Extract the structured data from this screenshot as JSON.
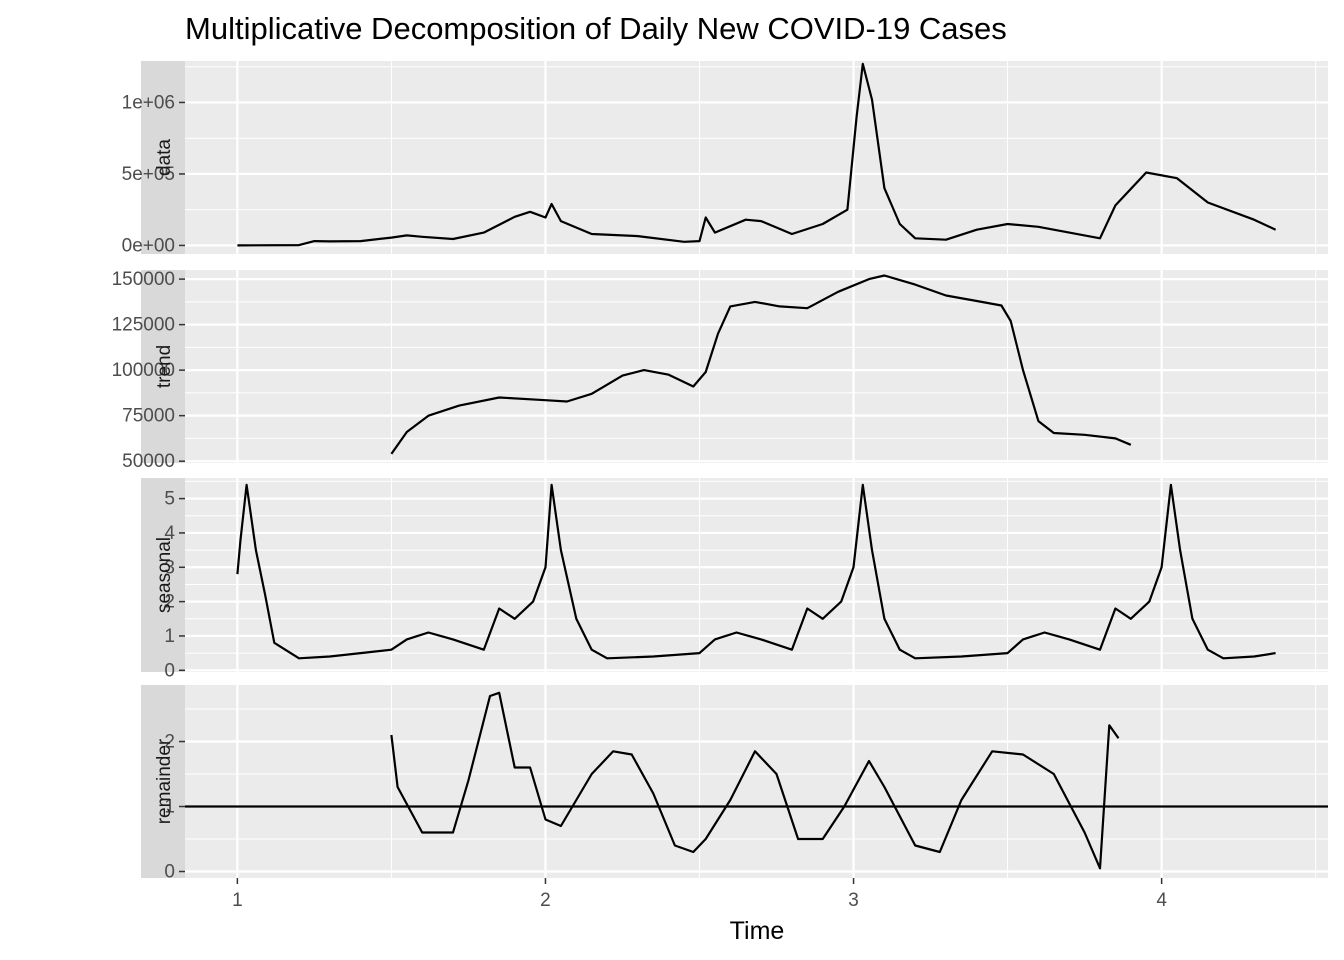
{
  "chart_data": {
    "type": "line",
    "title": "Multiplicative Decomposition of Daily New COVID-19 Cases",
    "xlabel": "Time",
    "xlim": [
      0.83,
      4.54
    ],
    "x_ticks": [
      1,
      2,
      3,
      4
    ],
    "x_tick_labels": [
      "1",
      "2",
      "3",
      "4"
    ],
    "grid": true,
    "panels": [
      {
        "name": "data",
        "ylim": [
          -60000,
          1290000
        ],
        "y_ticks": [
          0,
          500000,
          1000000
        ],
        "y_tick_labels": [
          "0e+00",
          "5e+05",
          "1e+06"
        ],
        "series": [
          [
            1.0,
            0
          ],
          [
            1.2,
            2000
          ],
          [
            1.25,
            30000
          ],
          [
            1.3,
            28000
          ],
          [
            1.4,
            30000
          ],
          [
            1.5,
            55000
          ],
          [
            1.55,
            70000
          ],
          [
            1.6,
            60000
          ],
          [
            1.7,
            45000
          ],
          [
            1.8,
            90000
          ],
          [
            1.9,
            200000
          ],
          [
            1.95,
            235000
          ],
          [
            2.0,
            195000
          ],
          [
            2.02,
            290000
          ],
          [
            2.05,
            170000
          ],
          [
            2.15,
            80000
          ],
          [
            2.3,
            65000
          ],
          [
            2.45,
            25000
          ],
          [
            2.5,
            30000
          ],
          [
            2.52,
            195000
          ],
          [
            2.55,
            90000
          ],
          [
            2.65,
            180000
          ],
          [
            2.7,
            170000
          ],
          [
            2.8,
            80000
          ],
          [
            2.9,
            150000
          ],
          [
            2.98,
            250000
          ],
          [
            3.01,
            900000
          ],
          [
            3.03,
            1270000
          ],
          [
            3.06,
            1020000
          ],
          [
            3.1,
            400000
          ],
          [
            3.15,
            150000
          ],
          [
            3.2,
            50000
          ],
          [
            3.3,
            40000
          ],
          [
            3.4,
            110000
          ],
          [
            3.5,
            150000
          ],
          [
            3.6,
            130000
          ],
          [
            3.7,
            90000
          ],
          [
            3.8,
            50000
          ],
          [
            3.85,
            280000
          ],
          [
            3.95,
            510000
          ],
          [
            4.05,
            470000
          ],
          [
            4.15,
            300000
          ],
          [
            4.3,
            180000
          ],
          [
            4.37,
            110000
          ]
        ]
      },
      {
        "name": "trend",
        "ylim": [
          49000,
          155000
        ],
        "y_ticks": [
          50000,
          75000,
          100000,
          125000,
          150000
        ],
        "y_tick_labels": [
          "50000",
          "75000",
          "100000",
          "125000",
          "150000"
        ],
        "series": [
          [
            1.5,
            54000
          ],
          [
            1.55,
            66000
          ],
          [
            1.62,
            75000
          ],
          [
            1.72,
            80500
          ],
          [
            1.85,
            85000
          ],
          [
            2.0,
            83500
          ],
          [
            2.07,
            82800
          ],
          [
            2.15,
            87000
          ],
          [
            2.25,
            97000
          ],
          [
            2.32,
            100000
          ],
          [
            2.4,
            97500
          ],
          [
            2.48,
            91000
          ],
          [
            2.52,
            99000
          ],
          [
            2.56,
            120000
          ],
          [
            2.6,
            135000
          ],
          [
            2.68,
            137500
          ],
          [
            2.76,
            135000
          ],
          [
            2.85,
            134000
          ],
          [
            2.95,
            143000
          ],
          [
            3.05,
            150000
          ],
          [
            3.1,
            152000
          ],
          [
            3.2,
            147000
          ],
          [
            3.3,
            141000
          ],
          [
            3.4,
            138000
          ],
          [
            3.48,
            135500
          ],
          [
            3.51,
            127000
          ],
          [
            3.55,
            100000
          ],
          [
            3.6,
            72000
          ],
          [
            3.65,
            65500
          ],
          [
            3.75,
            64500
          ],
          [
            3.85,
            62500
          ],
          [
            3.9,
            59000
          ]
        ]
      },
      {
        "name": "seasonal",
        "ylim": [
          -0.05,
          5.6
        ],
        "y_ticks": [
          0,
          1,
          2,
          3,
          4,
          5
        ],
        "y_tick_labels": [
          "0",
          "1",
          "2",
          "3",
          "4",
          "5"
        ],
        "series": [
          [
            1.0,
            2.8
          ],
          [
            1.01,
            3.8
          ],
          [
            1.03,
            5.4
          ],
          [
            1.06,
            3.5
          ],
          [
            1.09,
            2.2
          ],
          [
            1.12,
            0.8
          ],
          [
            1.2,
            0.35
          ],
          [
            1.3,
            0.4
          ],
          [
            1.4,
            0.5
          ],
          [
            1.5,
            0.6
          ],
          [
            1.55,
            0.9
          ],
          [
            1.62,
            1.1
          ],
          [
            1.7,
            0.9
          ],
          [
            1.8,
            0.6
          ],
          [
            1.85,
            1.8
          ],
          [
            1.9,
            1.5
          ],
          [
            1.96,
            2.0
          ],
          [
            2.0,
            3.0
          ],
          [
            2.02,
            5.4
          ],
          [
            2.05,
            3.5
          ],
          [
            2.1,
            1.5
          ],
          [
            2.15,
            0.6
          ],
          [
            2.2,
            0.35
          ],
          [
            2.35,
            0.4
          ],
          [
            2.5,
            0.5
          ],
          [
            2.55,
            0.9
          ],
          [
            2.62,
            1.1
          ],
          [
            2.7,
            0.9
          ],
          [
            2.8,
            0.6
          ],
          [
            2.85,
            1.8
          ],
          [
            2.9,
            1.5
          ],
          [
            2.96,
            2.0
          ],
          [
            3.0,
            3.0
          ],
          [
            3.03,
            5.4
          ],
          [
            3.06,
            3.5
          ],
          [
            3.1,
            1.5
          ],
          [
            3.15,
            0.6
          ],
          [
            3.2,
            0.35
          ],
          [
            3.35,
            0.4
          ],
          [
            3.5,
            0.5
          ],
          [
            3.55,
            0.9
          ],
          [
            3.62,
            1.1
          ],
          [
            3.7,
            0.9
          ],
          [
            3.8,
            0.6
          ],
          [
            3.85,
            1.8
          ],
          [
            3.9,
            1.5
          ],
          [
            3.96,
            2.0
          ],
          [
            4.0,
            3.0
          ],
          [
            4.03,
            5.4
          ],
          [
            4.06,
            3.5
          ],
          [
            4.1,
            1.5
          ],
          [
            4.15,
            0.6
          ],
          [
            4.2,
            0.35
          ],
          [
            4.3,
            0.4
          ],
          [
            4.37,
            0.5
          ]
        ]
      },
      {
        "name": "remainder",
        "ylim": [
          -0.1,
          2.87
        ],
        "y_ticks": [
          0,
          1,
          2
        ],
        "y_tick_labels": [
          "0",
          "1",
          "2"
        ],
        "reference_line": 1,
        "series": [
          [
            1.5,
            2.1
          ],
          [
            1.52,
            1.3
          ],
          [
            1.6,
            0.6
          ],
          [
            1.7,
            0.6
          ],
          [
            1.75,
            1.4
          ],
          [
            1.82,
            2.7
          ],
          [
            1.85,
            2.75
          ],
          [
            1.9,
            1.6
          ],
          [
            1.95,
            1.6
          ],
          [
            2.0,
            0.8
          ],
          [
            2.05,
            0.7
          ],
          [
            2.15,
            1.5
          ],
          [
            2.22,
            1.85
          ],
          [
            2.28,
            1.8
          ],
          [
            2.35,
            1.2
          ],
          [
            2.42,
            0.4
          ],
          [
            2.48,
            0.3
          ],
          [
            2.52,
            0.5
          ],
          [
            2.6,
            1.1
          ],
          [
            2.68,
            1.85
          ],
          [
            2.75,
            1.5
          ],
          [
            2.82,
            0.5
          ],
          [
            2.9,
            0.5
          ],
          [
            2.97,
            1.0
          ],
          [
            3.05,
            1.7
          ],
          [
            3.1,
            1.3
          ],
          [
            3.2,
            0.4
          ],
          [
            3.28,
            0.3
          ],
          [
            3.35,
            1.1
          ],
          [
            3.45,
            1.85
          ],
          [
            3.55,
            1.8
          ],
          [
            3.65,
            1.5
          ],
          [
            3.75,
            0.6
          ],
          [
            3.8,
            0.05
          ],
          [
            3.83,
            2.25
          ],
          [
            3.86,
            2.05
          ]
        ]
      }
    ]
  }
}
